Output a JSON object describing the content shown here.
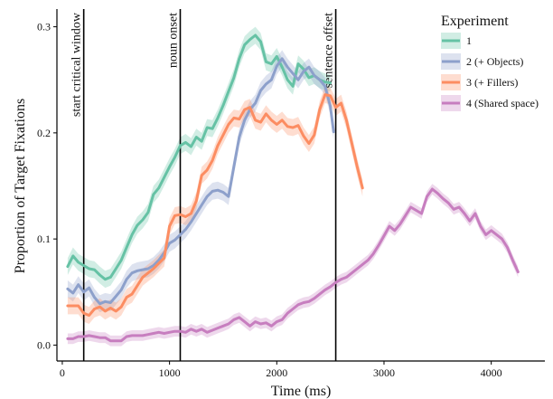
{
  "chart_data": {
    "type": "line",
    "xlabel": "Time (ms)",
    "ylabel": "Proportion of Target Fixations",
    "xlim": [
      -50,
      4500
    ],
    "ylim": [
      -0.015,
      0.315
    ],
    "xticks": [
      0,
      1000,
      2000,
      3000,
      4000
    ],
    "yticks": [
      0.0,
      0.1,
      0.2,
      0.3
    ],
    "ytick_labels": [
      "0.0",
      "0.1",
      "0.2",
      "0.3"
    ],
    "grid": false,
    "ribbons": true,
    "legend": {
      "title": "Experiment",
      "position": "top-right"
    },
    "vertical_lines": [
      {
        "x": 200,
        "label": "start critical window"
      },
      {
        "x": 1100,
        "label": "noun onset"
      },
      {
        "x": 2550,
        "label": "sentence offset"
      }
    ],
    "series": [
      {
        "name": "1",
        "color": "#66c2a5",
        "band": 0.008,
        "x": [
          50,
          100,
          150,
          200,
          250,
          300,
          350,
          400,
          450,
          500,
          550,
          600,
          650,
          700,
          750,
          800,
          850,
          900,
          950,
          1000,
          1050,
          1100,
          1150,
          1200,
          1250,
          1300,
          1350,
          1400,
          1450,
          1500,
          1550,
          1600,
          1650,
          1700,
          1750,
          1800,
          1850,
          1900,
          1950,
          2000,
          2050,
          2100,
          2150,
          2200,
          2250,
          2300,
          2350,
          2400,
          2450,
          2500
        ],
        "values": [
          0.074,
          0.084,
          0.078,
          0.075,
          0.072,
          0.071,
          0.066,
          0.062,
          0.064,
          0.072,
          0.08,
          0.092,
          0.104,
          0.113,
          0.118,
          0.125,
          0.142,
          0.148,
          0.158,
          0.168,
          0.177,
          0.188,
          0.191,
          0.187,
          0.196,
          0.192,
          0.205,
          0.204,
          0.214,
          0.226,
          0.239,
          0.252,
          0.27,
          0.283,
          0.288,
          0.292,
          0.286,
          0.267,
          0.265,
          0.272,
          0.262,
          0.25,
          0.244,
          0.265,
          0.26,
          0.252,
          0.254,
          0.25,
          0.248,
          0.247
        ]
      },
      {
        "name": "2 (+ Objects)",
        "color": "#8da0cb",
        "band": 0.008,
        "x": [
          50,
          100,
          150,
          200,
          250,
          300,
          350,
          400,
          450,
          500,
          550,
          600,
          650,
          700,
          750,
          800,
          850,
          900,
          950,
          1000,
          1050,
          1100,
          1150,
          1200,
          1250,
          1300,
          1350,
          1400,
          1450,
          1500,
          1550,
          1600,
          1650,
          1700,
          1750,
          1800,
          1850,
          1900,
          1950,
          2000,
          2050,
          2100,
          2150,
          2200,
          2250,
          2300,
          2350,
          2400,
          2450,
          2500,
          2530
        ],
        "values": [
          0.053,
          0.049,
          0.057,
          0.05,
          0.054,
          0.045,
          0.039,
          0.041,
          0.04,
          0.046,
          0.052,
          0.062,
          0.068,
          0.07,
          0.071,
          0.072,
          0.075,
          0.08,
          0.087,
          0.096,
          0.099,
          0.104,
          0.109,
          0.116,
          0.124,
          0.132,
          0.14,
          0.145,
          0.146,
          0.144,
          0.14,
          0.168,
          0.196,
          0.212,
          0.222,
          0.228,
          0.24,
          0.246,
          0.25,
          0.263,
          0.27,
          0.262,
          0.256,
          0.25,
          0.258,
          0.262,
          0.254,
          0.25,
          0.244,
          0.225,
          0.201
        ]
      },
      {
        "name": "3 (+ Fillers)",
        "color": "#fc8d62",
        "band": 0.008,
        "x": [
          50,
          100,
          150,
          200,
          250,
          300,
          350,
          400,
          450,
          500,
          550,
          600,
          650,
          700,
          750,
          800,
          850,
          900,
          950,
          1000,
          1050,
          1100,
          1150,
          1200,
          1250,
          1300,
          1350,
          1400,
          1450,
          1500,
          1550,
          1600,
          1650,
          1700,
          1750,
          1800,
          1850,
          1900,
          1950,
          2000,
          2050,
          2100,
          2150,
          2200,
          2250,
          2300,
          2350,
          2400,
          2450,
          2500,
          2550,
          2600,
          2650,
          2700,
          2750,
          2800
        ],
        "values": [
          0.037,
          0.037,
          0.037,
          0.03,
          0.028,
          0.034,
          0.036,
          0.032,
          0.035,
          0.032,
          0.036,
          0.045,
          0.048,
          0.056,
          0.064,
          0.068,
          0.072,
          0.077,
          0.082,
          0.112,
          0.122,
          0.123,
          0.121,
          0.124,
          0.136,
          0.16,
          0.165,
          0.174,
          0.188,
          0.198,
          0.208,
          0.214,
          0.213,
          0.222,
          0.224,
          0.212,
          0.21,
          0.218,
          0.212,
          0.208,
          0.212,
          0.206,
          0.205,
          0.207,
          0.197,
          0.19,
          0.198,
          0.222,
          0.236,
          0.235,
          0.224,
          0.228,
          0.212,
          0.19,
          0.168,
          0.148
        ]
      },
      {
        "name": "4 (Shared space)",
        "color": "#c77ebf",
        "band": 0.005,
        "x": [
          50,
          100,
          150,
          200,
          250,
          300,
          350,
          400,
          450,
          500,
          550,
          600,
          650,
          700,
          750,
          800,
          850,
          900,
          950,
          1000,
          1050,
          1100,
          1150,
          1200,
          1250,
          1300,
          1350,
          1400,
          1450,
          1500,
          1550,
          1600,
          1650,
          1700,
          1750,
          1800,
          1850,
          1900,
          1950,
          2000,
          2050,
          2100,
          2150,
          2200,
          2250,
          2300,
          2350,
          2400,
          2450,
          2500,
          2550,
          2600,
          2650,
          2700,
          2750,
          2800,
          2850,
          2900,
          2950,
          3000,
          3050,
          3100,
          3150,
          3200,
          3250,
          3300,
          3350,
          3400,
          3450,
          3500,
          3550,
          3600,
          3650,
          3700,
          3750,
          3800,
          3850,
          3900,
          3950,
          4000,
          4050,
          4100,
          4150,
          4200,
          4250
        ],
        "values": [
          0.006,
          0.006,
          0.008,
          0.008,
          0.009,
          0.008,
          0.007,
          0.007,
          0.004,
          0.004,
          0.004,
          0.008,
          0.009,
          0.009,
          0.009,
          0.01,
          0.011,
          0.012,
          0.011,
          0.012,
          0.013,
          0.013,
          0.012,
          0.015,
          0.013,
          0.015,
          0.012,
          0.014,
          0.016,
          0.018,
          0.02,
          0.024,
          0.026,
          0.022,
          0.018,
          0.022,
          0.02,
          0.021,
          0.018,
          0.022,
          0.024,
          0.03,
          0.034,
          0.038,
          0.04,
          0.041,
          0.044,
          0.048,
          0.052,
          0.055,
          0.059,
          0.062,
          0.064,
          0.068,
          0.072,
          0.076,
          0.08,
          0.086,
          0.094,
          0.103,
          0.112,
          0.108,
          0.114,
          0.122,
          0.13,
          0.127,
          0.124,
          0.14,
          0.147,
          0.143,
          0.138,
          0.134,
          0.128,
          0.13,
          0.124,
          0.117,
          0.124,
          0.112,
          0.104,
          0.108,
          0.104,
          0.1,
          0.092,
          0.08,
          0.069
        ]
      }
    ]
  }
}
